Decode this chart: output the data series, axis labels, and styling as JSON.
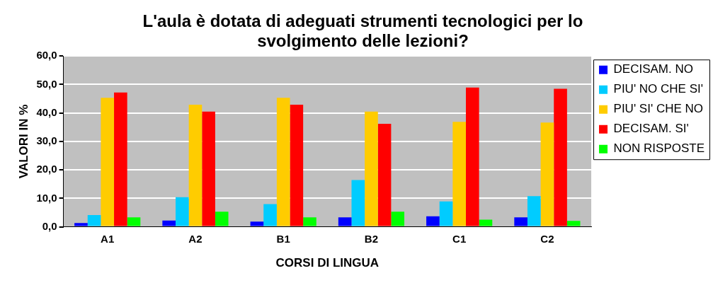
{
  "chart_data": {
    "type": "bar",
    "title": "L'aula è dotata di adeguati strumenti tecnologici per lo svolgimento delle lezioni?",
    "xlabel": "CORSI DI LINGUA",
    "ylabel": "VALORI IN %",
    "categories": [
      "A1",
      "A2",
      "B1",
      "B2",
      "C1",
      "C2"
    ],
    "series": [
      {
        "name": "DECISAM. NO",
        "color": "#0000ff",
        "values": [
          1.3,
          2.2,
          1.8,
          3.3,
          3.7,
          3.3
        ]
      },
      {
        "name": "PIU' NO CHE SI'",
        "color": "#00ccff",
        "values": [
          4.1,
          10.4,
          8.0,
          16.4,
          8.9,
          10.8
        ]
      },
      {
        "name": "PIU' SI' CHE NO",
        "color": "#ffcc00",
        "values": [
          45.3,
          42.9,
          45.3,
          40.5,
          36.9,
          36.6
        ]
      },
      {
        "name": "DECISAM. SI'",
        "color": "#ff0000",
        "values": [
          47.2,
          40.5,
          42.9,
          36.2,
          48.9,
          48.5
        ]
      },
      {
        "name": "NON RISPOSTE",
        "color": "#00ff00",
        "values": [
          3.3,
          5.3,
          3.3,
          5.3,
          2.5,
          2.1
        ]
      }
    ],
    "ylim": [
      0,
      60
    ],
    "yticks": [
      {
        "value": 0,
        "label": "0,0"
      },
      {
        "value": 10,
        "label": "10,0"
      },
      {
        "value": 20,
        "label": "20,0"
      },
      {
        "value": 30,
        "label": "30,0"
      },
      {
        "value": 40,
        "label": "40,0"
      },
      {
        "value": 50,
        "label": "50,0"
      },
      {
        "value": 60,
        "label": "60,0"
      }
    ],
    "grid": "y",
    "legend": "right"
  }
}
